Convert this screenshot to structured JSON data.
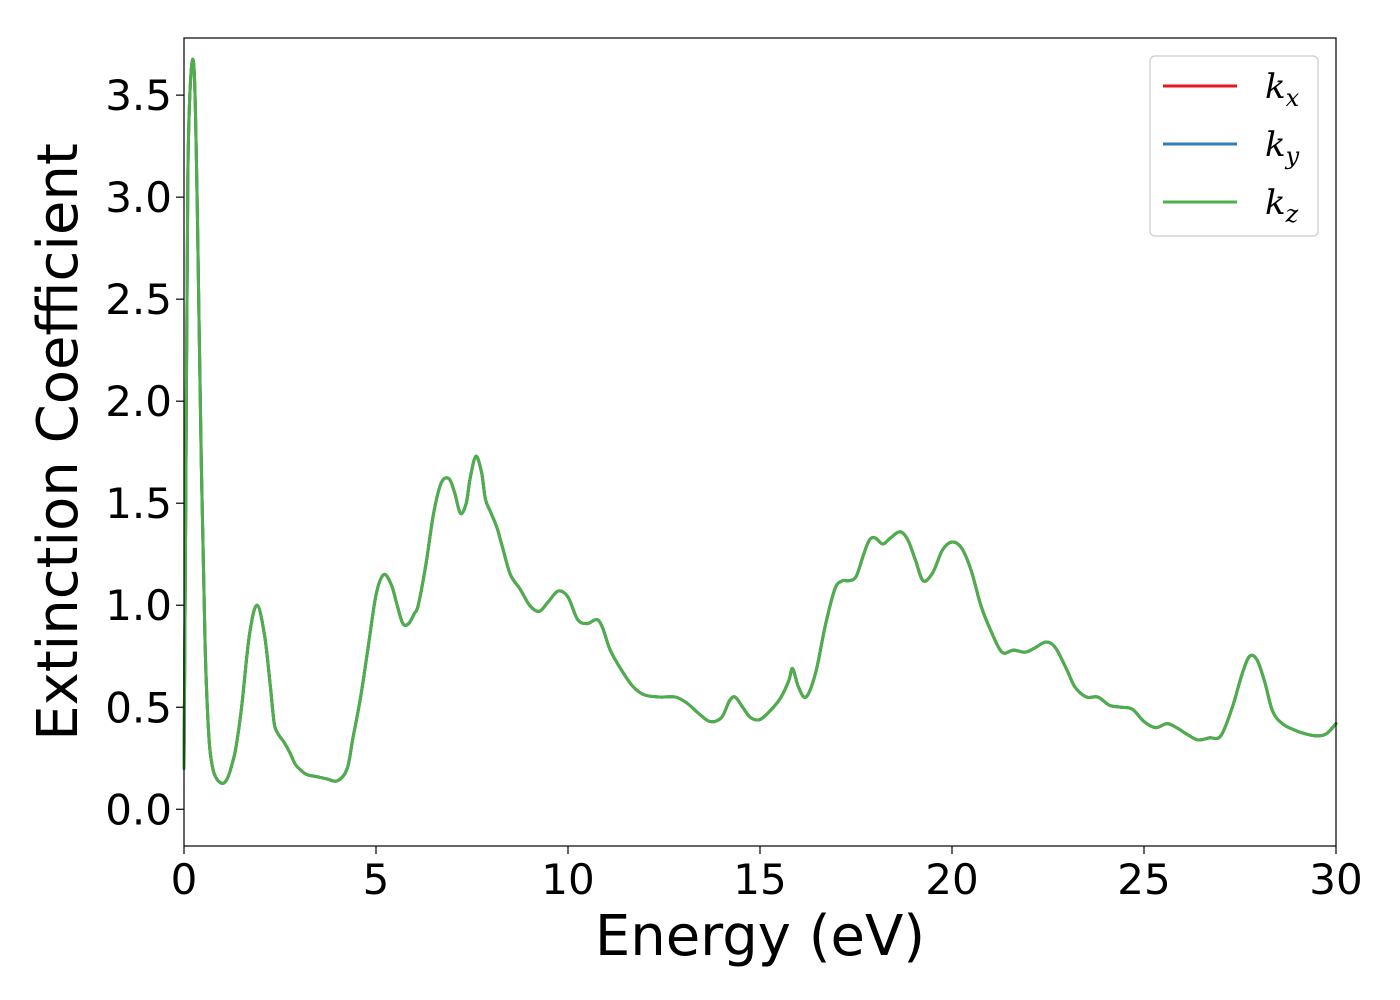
{
  "chart_data": {
    "type": "line",
    "title": "",
    "xlabel": "Energy (eV)",
    "ylabel": "Extinction Coefficient",
    "xlim": [
      0,
      30
    ],
    "ylim": [
      -0.18,
      3.78
    ],
    "xticks": [
      0,
      5,
      10,
      15,
      20,
      25,
      30
    ],
    "xtick_labels": [
      "0",
      "5",
      "10",
      "15",
      "20",
      "25",
      "30"
    ],
    "yticks": [
      0.0,
      0.5,
      1.0,
      1.5,
      2.0,
      2.5,
      3.0,
      3.5
    ],
    "ytick_labels": [
      "0.0",
      "0.5",
      "1.0",
      "1.5",
      "2.0",
      "2.5",
      "3.0",
      "3.5"
    ],
    "grid": false,
    "legend_position": "top-right",
    "x": [
      0,
      0.05,
      0.1,
      0.18,
      0.27,
      0.35,
      0.45,
      0.55,
      0.65,
      0.75,
      0.85,
      0.95,
      1.05,
      1.15,
      1.25,
      1.35,
      1.5,
      1.7,
      1.9,
      2.1,
      2.25,
      2.35,
      2.45,
      2.6,
      2.75,
      2.9,
      3.05,
      3.2,
      3.45,
      3.7,
      4.0,
      4.25,
      4.4,
      4.6,
      4.8,
      5.0,
      5.2,
      5.4,
      5.55,
      5.7,
      5.85,
      6.0,
      6.1,
      6.3,
      6.5,
      6.7,
      6.9,
      7.05,
      7.2,
      7.35,
      7.45,
      7.6,
      7.75,
      7.85,
      8.0,
      8.15,
      8.3,
      8.5,
      8.75,
      9.0,
      9.25,
      9.5,
      9.75,
      10.0,
      10.25,
      10.5,
      10.75,
      10.9,
      11.1,
      11.4,
      11.7,
      12.0,
      12.4,
      12.8,
      13.1,
      13.4,
      13.7,
      14.0,
      14.2,
      14.35,
      14.55,
      14.75,
      15.0,
      15.3,
      15.55,
      15.75,
      15.85,
      16.0,
      16.2,
      16.45,
      16.7,
      16.95,
      17.15,
      17.3,
      17.5,
      17.7,
      17.85,
      18.0,
      18.2,
      18.4,
      18.65,
      18.85,
      19.05,
      19.25,
      19.5,
      19.75,
      20.0,
      20.25,
      20.5,
      20.75,
      21.0,
      21.3,
      21.6,
      21.9,
      22.15,
      22.45,
      22.7,
      23.0,
      23.2,
      23.5,
      23.8,
      24.1,
      24.4,
      24.7,
      25.0,
      25.3,
      25.6,
      25.85,
      26.1,
      26.4,
      26.7,
      27.0,
      27.3,
      27.55,
      27.75,
      27.95,
      28.15,
      28.35,
      28.6,
      28.9,
      29.2,
      29.5,
      29.75,
      30.0
    ],
    "series": [
      {
        "name": "x",
        "color": "#e41a1c",
        "values": [
          0.2,
          1.6,
          3.1,
          3.6,
          3.6,
          2.9,
          1.7,
          0.8,
          0.35,
          0.2,
          0.15,
          0.13,
          0.13,
          0.16,
          0.22,
          0.3,
          0.5,
          0.85,
          1.0,
          0.85,
          0.6,
          0.42,
          0.37,
          0.33,
          0.28,
          0.22,
          0.19,
          0.17,
          0.16,
          0.15,
          0.14,
          0.2,
          0.35,
          0.55,
          0.8,
          1.05,
          1.15,
          1.1,
          1.0,
          0.91,
          0.91,
          0.96,
          1.0,
          1.2,
          1.45,
          1.6,
          1.62,
          1.55,
          1.45,
          1.5,
          1.62,
          1.73,
          1.65,
          1.52,
          1.45,
          1.38,
          1.28,
          1.15,
          1.08,
          1.0,
          0.97,
          1.02,
          1.07,
          1.04,
          0.93,
          0.91,
          0.93,
          0.89,
          0.78,
          0.68,
          0.6,
          0.56,
          0.55,
          0.55,
          0.52,
          0.47,
          0.43,
          0.45,
          0.53,
          0.55,
          0.5,
          0.45,
          0.44,
          0.49,
          0.55,
          0.63,
          0.69,
          0.6,
          0.55,
          0.67,
          0.9,
          1.08,
          1.12,
          1.12,
          1.14,
          1.25,
          1.32,
          1.33,
          1.3,
          1.33,
          1.36,
          1.32,
          1.22,
          1.12,
          1.16,
          1.27,
          1.31,
          1.28,
          1.17,
          1.0,
          0.88,
          0.77,
          0.78,
          0.77,
          0.79,
          0.82,
          0.79,
          0.68,
          0.6,
          0.55,
          0.55,
          0.51,
          0.5,
          0.49,
          0.43,
          0.4,
          0.42,
          0.4,
          0.37,
          0.34,
          0.35,
          0.36,
          0.5,
          0.66,
          0.75,
          0.73,
          0.62,
          0.48,
          0.42,
          0.39,
          0.37,
          0.36,
          0.37,
          0.42
        ]
      },
      {
        "name": "y",
        "color": "#377eb8",
        "values": [
          0.2,
          1.6,
          3.1,
          3.6,
          3.6,
          2.9,
          1.7,
          0.8,
          0.35,
          0.2,
          0.15,
          0.13,
          0.13,
          0.16,
          0.22,
          0.3,
          0.5,
          0.85,
          1.0,
          0.85,
          0.6,
          0.42,
          0.37,
          0.33,
          0.28,
          0.22,
          0.19,
          0.17,
          0.16,
          0.15,
          0.14,
          0.2,
          0.35,
          0.55,
          0.8,
          1.05,
          1.15,
          1.1,
          1.0,
          0.91,
          0.91,
          0.96,
          1.0,
          1.2,
          1.45,
          1.6,
          1.62,
          1.55,
          1.45,
          1.5,
          1.62,
          1.73,
          1.65,
          1.52,
          1.45,
          1.38,
          1.28,
          1.15,
          1.08,
          1.0,
          0.97,
          1.02,
          1.07,
          1.04,
          0.93,
          0.91,
          0.93,
          0.89,
          0.78,
          0.68,
          0.6,
          0.56,
          0.55,
          0.55,
          0.52,
          0.47,
          0.43,
          0.45,
          0.53,
          0.55,
          0.5,
          0.45,
          0.44,
          0.49,
          0.55,
          0.63,
          0.69,
          0.6,
          0.55,
          0.67,
          0.9,
          1.08,
          1.12,
          1.12,
          1.14,
          1.25,
          1.32,
          1.33,
          1.3,
          1.33,
          1.36,
          1.32,
          1.22,
          1.12,
          1.16,
          1.27,
          1.31,
          1.28,
          1.17,
          1.0,
          0.88,
          0.77,
          0.78,
          0.77,
          0.79,
          0.82,
          0.79,
          0.68,
          0.6,
          0.55,
          0.55,
          0.51,
          0.5,
          0.49,
          0.43,
          0.4,
          0.42,
          0.4,
          0.37,
          0.34,
          0.35,
          0.36,
          0.5,
          0.66,
          0.75,
          0.73,
          0.62,
          0.48,
          0.42,
          0.39,
          0.37,
          0.36,
          0.37,
          0.42
        ]
      },
      {
        "name": "z",
        "color": "#4daf4a",
        "values": [
          0.2,
          1.6,
          3.1,
          3.6,
          3.6,
          2.9,
          1.7,
          0.8,
          0.35,
          0.2,
          0.15,
          0.13,
          0.13,
          0.16,
          0.22,
          0.3,
          0.5,
          0.85,
          1.0,
          0.85,
          0.6,
          0.42,
          0.37,
          0.33,
          0.28,
          0.22,
          0.19,
          0.17,
          0.16,
          0.15,
          0.14,
          0.2,
          0.35,
          0.55,
          0.8,
          1.05,
          1.15,
          1.1,
          1.0,
          0.91,
          0.91,
          0.96,
          1.0,
          1.2,
          1.45,
          1.6,
          1.62,
          1.55,
          1.45,
          1.5,
          1.62,
          1.73,
          1.65,
          1.52,
          1.45,
          1.38,
          1.28,
          1.15,
          1.08,
          1.0,
          0.97,
          1.02,
          1.07,
          1.04,
          0.93,
          0.91,
          0.93,
          0.89,
          0.78,
          0.68,
          0.6,
          0.56,
          0.55,
          0.55,
          0.52,
          0.47,
          0.43,
          0.45,
          0.53,
          0.55,
          0.5,
          0.45,
          0.44,
          0.49,
          0.55,
          0.63,
          0.69,
          0.6,
          0.55,
          0.67,
          0.9,
          1.08,
          1.12,
          1.12,
          1.14,
          1.25,
          1.32,
          1.33,
          1.3,
          1.33,
          1.36,
          1.32,
          1.22,
          1.12,
          1.16,
          1.27,
          1.31,
          1.28,
          1.17,
          1.0,
          0.88,
          0.77,
          0.78,
          0.77,
          0.79,
          0.82,
          0.79,
          0.68,
          0.6,
          0.55,
          0.55,
          0.51,
          0.5,
          0.49,
          0.43,
          0.4,
          0.42,
          0.4,
          0.37,
          0.34,
          0.35,
          0.36,
          0.5,
          0.66,
          0.75,
          0.73,
          0.62,
          0.48,
          0.42,
          0.39,
          0.37,
          0.36,
          0.37,
          0.42
        ]
      }
    ],
    "legend": [
      {
        "symbol": "k",
        "subscript": "x",
        "color": "#e41a1c"
      },
      {
        "symbol": "k",
        "subscript": "y",
        "color": "#377eb8"
      },
      {
        "symbol": "k",
        "subscript": "z",
        "color": "#4daf4a"
      }
    ]
  }
}
